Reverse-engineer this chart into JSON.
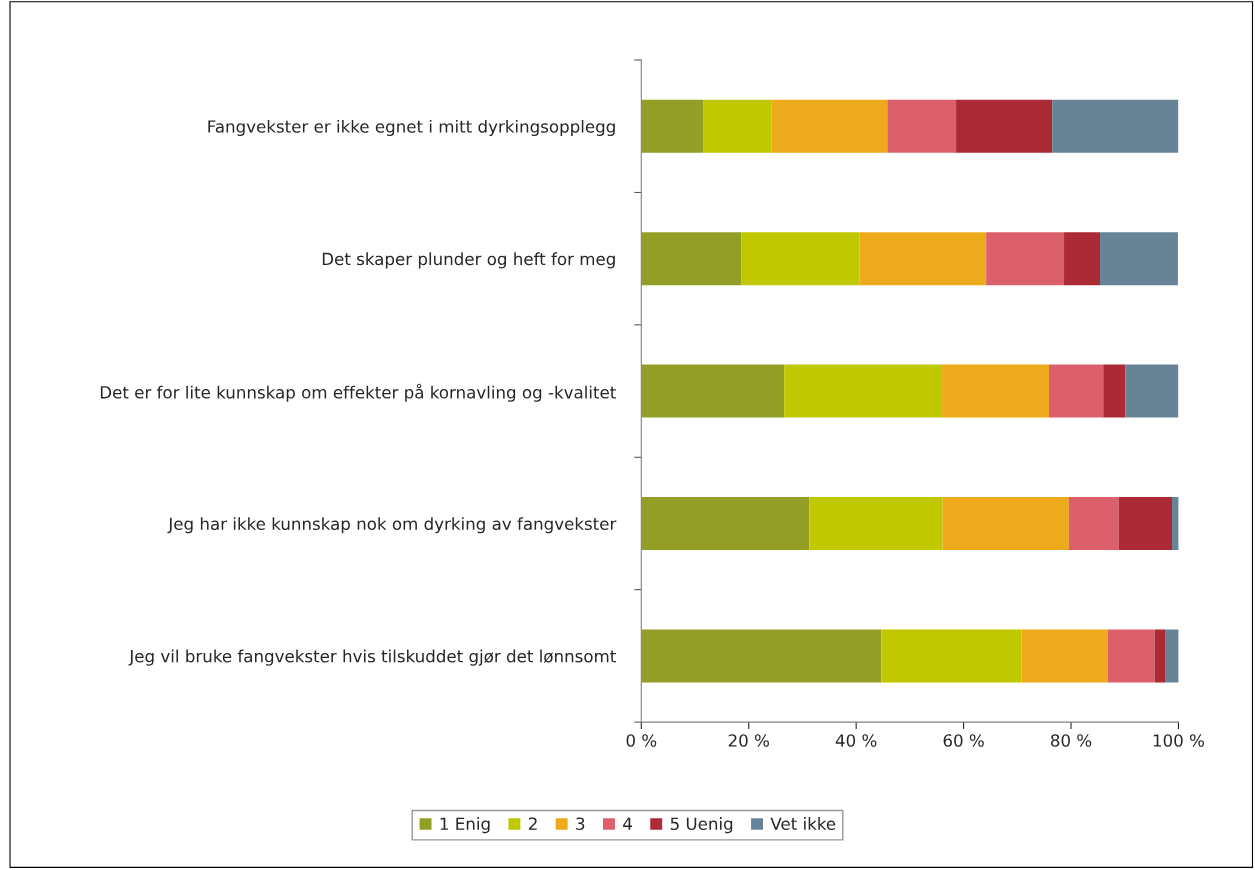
{
  "chart_data": {
    "type": "bar",
    "orientation": "horizontal",
    "stacked": true,
    "categories": [
      "Fangvekster er ikke egnet i mitt dyrkingsopplegg",
      "Det skaper plunder og heft for meg",
      "Det er for lite kunnskap om effekter på kornavling og -kvalitet",
      "Jeg har ikke kunnskap nok om dyrking av fangvekster",
      "Jeg vil bruke fangvekster hvis tilskuddet gjør det lønnsomt"
    ],
    "series": [
      {
        "name": "1 Enig",
        "color": "#939e26",
        "values": [
          11.5,
          18.6,
          26.6,
          31.3,
          44.7
        ]
      },
      {
        "name": "2",
        "color": "#c0c800",
        "values": [
          12.7,
          22.0,
          29.4,
          24.8,
          26.1
        ]
      },
      {
        "name": "3",
        "color": "#eeaa1d",
        "values": [
          21.6,
          23.6,
          19.9,
          23.5,
          16.0
        ]
      },
      {
        "name": "4",
        "color": "#db606b",
        "values": [
          12.8,
          14.5,
          10.1,
          9.3,
          8.8
        ]
      },
      {
        "name": "5 Uenig",
        "color": "#ac2a35",
        "values": [
          17.9,
          6.7,
          4.1,
          9.9,
          1.9
        ]
      },
      {
        "name": "Vet ikke",
        "color": "#678496",
        "values": [
          23.5,
          14.5,
          9.9,
          1.3,
          2.6
        ]
      }
    ],
    "xlim": [
      0,
      100
    ],
    "xticks": [
      {
        "value": 0,
        "label": "0 %"
      },
      {
        "value": 20,
        "label": "20 %"
      },
      {
        "value": 40,
        "label": "40 %"
      },
      {
        "value": 60,
        "label": "60 %"
      },
      {
        "value": 80,
        "label": "80 %"
      },
      {
        "value": 100,
        "label": "100 %"
      }
    ],
    "grid": false,
    "legend": "bottom"
  }
}
